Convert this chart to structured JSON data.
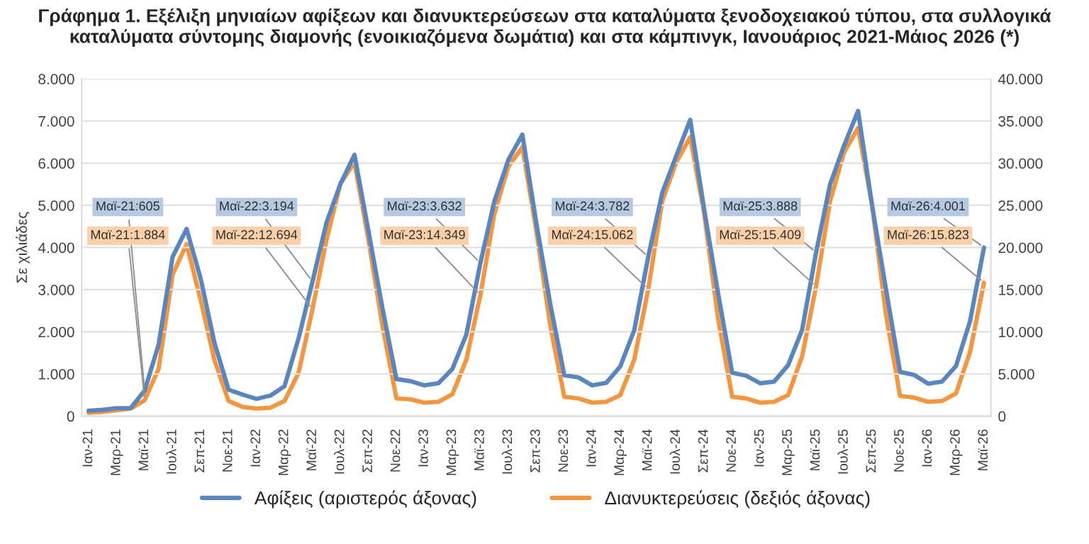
{
  "chart_data": {
    "type": "line",
    "title": "Γράφημα 1. Εξέλιξη μηνιαίων αφίξεων και διανυκτερεύσεων στα καταλύματα ξενοδοχειακού τύπου, στα συλλογικά καταλύματα σύντομης διαμονής (ενοικιαζόμενα δωμάτια) και στα κάμπινγκ, Ιανουάριος 2021-Μάιος 2026 (*)",
    "ylabel": "Σε χιλιάδες",
    "categories": [
      "Ιαν-21",
      null,
      "Μαρ-21",
      null,
      "Μαϊ-21",
      null,
      "Ιουλ-21",
      null,
      "Σεπ-21",
      null,
      "Νοε-21",
      null,
      "Ιαν-22",
      null,
      "Μαρ-22",
      null,
      "Μαϊ-22",
      null,
      "Ιουλ-22",
      null,
      "Σεπ-22",
      null,
      "Νοε-22",
      null,
      "Ιαν-23",
      null,
      "Μαρ-23",
      null,
      "Μαϊ-23",
      null,
      "Ιουλ-23",
      null,
      "Σεπ-23",
      null,
      "Νοε-23",
      null,
      "Ιαν-24",
      null,
      "Μαρ-24",
      null,
      "Μαϊ-24",
      null,
      "Ιουλ-24",
      null,
      "Σεπ-24",
      null,
      "Νοε-24",
      null,
      "Ιαν-25",
      null,
      "Μαρ-25",
      null,
      "Μαϊ-25",
      null,
      "Ιουλ-25",
      null,
      "Σεπ-25",
      null,
      "Νοε-25",
      null,
      "Ιαν-26",
      null,
      "Μαρ-26",
      null,
      "Μαϊ-26"
    ],
    "series": [
      {
        "name": "Αφίξεις (αριστερός άξονας)",
        "color": "#5a86bf",
        "values": [
          130,
          150,
          190,
          190,
          605,
          1700,
          3780,
          4440,
          3270,
          1730,
          630,
          510,
          410,
          490,
          710,
          1840,
          3194,
          4590,
          5510,
          6200,
          4390,
          2560,
          880,
          830,
          730,
          780,
          1120,
          1940,
          3632,
          5100,
          6080,
          6680,
          4580,
          2650,
          970,
          920,
          730,
          790,
          1180,
          2040,
          3782,
          5300,
          6170,
          7030,
          4900,
          2900,
          1030,
          960,
          780,
          820,
          1210,
          2050,
          3888,
          5500,
          6420,
          7240,
          5000,
          3000,
          1050,
          980,
          770,
          820,
          1190,
          2250,
          4001
        ],
        "value_labels": [
          null,
          null,
          null,
          null,
          "Μαϊ-21:605",
          null,
          null,
          null,
          null,
          null,
          null,
          null,
          null,
          null,
          null,
          null,
          "Μαϊ-22:3.194",
          null,
          null,
          null,
          null,
          null,
          null,
          null,
          null,
          null,
          null,
          null,
          "Μαϊ-23:3.632",
          null,
          null,
          null,
          null,
          null,
          null,
          null,
          null,
          null,
          null,
          null,
          "Μαϊ-24:3.782",
          null,
          null,
          null,
          null,
          null,
          null,
          null,
          null,
          null,
          null,
          null,
          "Μαϊ-25:3.888",
          null,
          null,
          null,
          null,
          null,
          null,
          null,
          null,
          null,
          null,
          null,
          "Μαϊ-26:4.001"
        ]
      },
      {
        "name": "Διανυκτερεύσεις (δεξιός άξονας)",
        "color": "#f5963f",
        "axis": "y2",
        "values": [
          400,
          500,
          700,
          900,
          1884,
          5600,
          16800,
          20400,
          13800,
          6600,
          1800,
          1100,
          900,
          1000,
          1800,
          5100,
          12694,
          20900,
          27600,
          30100,
          20900,
          10700,
          2100,
          2000,
          1600,
          1700,
          2600,
          6700,
          14349,
          24000,
          29600,
          31900,
          22000,
          10700,
          2300,
          2100,
          1600,
          1700,
          2500,
          6700,
          15062,
          25500,
          30100,
          33100,
          24000,
          11500,
          2300,
          2100,
          1600,
          1700,
          2500,
          7100,
          15409,
          25500,
          31300,
          34200,
          25000,
          12000,
          2400,
          2200,
          1700,
          1800,
          2700,
          7600,
          15823
        ],
        "value_labels": [
          null,
          null,
          null,
          null,
          "Μαϊ-21:1.884",
          null,
          null,
          null,
          null,
          null,
          null,
          null,
          null,
          null,
          null,
          null,
          "Μαϊ-22:12.694",
          null,
          null,
          null,
          null,
          null,
          null,
          null,
          null,
          null,
          null,
          null,
          "Μαϊ-23:14.349",
          null,
          null,
          null,
          null,
          null,
          null,
          null,
          null,
          null,
          null,
          null,
          "Μαϊ-24:15.062",
          null,
          null,
          null,
          null,
          null,
          null,
          null,
          null,
          null,
          null,
          null,
          "Μαϊ-25:15.409",
          null,
          null,
          null,
          null,
          null,
          null,
          null,
          null,
          null,
          null,
          null,
          "Μαϊ-26:15.823"
        ]
      }
    ],
    "ylim": [
      0,
      8000
    ],
    "yticks": [
      0,
      {
        "value": 1000,
        "label": "1.000"
      },
      {
        "value": 2000,
        "label": "2.000"
      },
      {
        "value": 3000,
        "label": "3.000"
      },
      {
        "value": 4000,
        "label": "4.000"
      },
      {
        "value": 5000,
        "label": "5.000"
      },
      {
        "value": 6000,
        "label": "6.000"
      },
      {
        "value": 7000,
        "label": "7.000"
      },
      {
        "value": 8000,
        "label": "8.000"
      }
    ],
    "y2lim": [
      0,
      40000
    ],
    "y2ticks": [
      0,
      {
        "value": 5000,
        "label": "5.000"
      },
      {
        "value": 10000,
        "label": "10.000"
      },
      {
        "value": 15000,
        "label": "15.000"
      },
      {
        "value": 20000,
        "label": "20.000"
      },
      {
        "value": 25000,
        "label": "25.000"
      },
      {
        "value": 30000,
        "label": "30.000"
      },
      {
        "value": 35000,
        "label": "35.000"
      },
      {
        "value": 40000,
        "label": "40.000"
      }
    ],
    "grid": "y",
    "legend": "bottom"
  }
}
